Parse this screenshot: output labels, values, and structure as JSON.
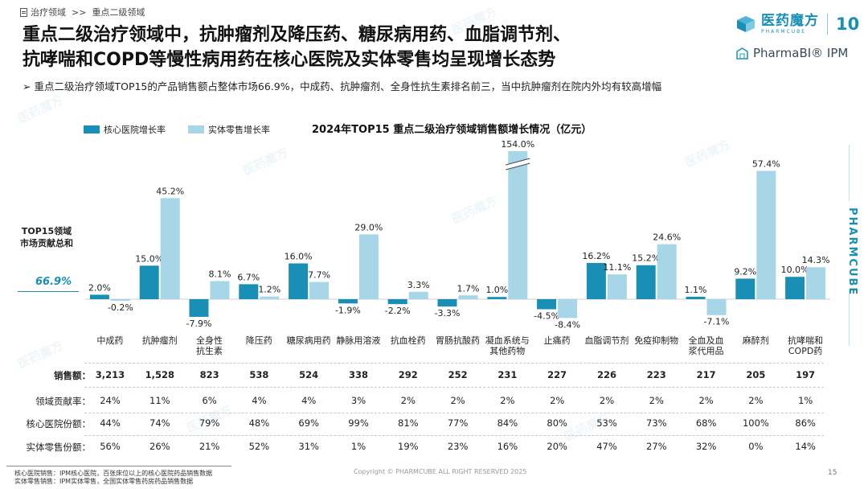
{
  "breadcrumb": {
    "section": "治疗领域",
    "separator": ">>",
    "current": "重点二级领域"
  },
  "title_lines": [
    "重点二级治疗领域中，抗肿瘤剂及降压药、糖尿病用药、血脂调节剂、",
    "抗哮喘和COPD等慢性病用药在核心医院及实体零售均呈现增长态势"
  ],
  "subtitle": "重点二级治疗领域TOP15的产品销售额占整体市场66.9%，中成药、抗肿瘤剂、全身性抗生素排名前三，当中抗肿瘤剂在院内外均有较高增幅",
  "logo": {
    "brand_cn": "医药魔方",
    "brand_en": "PHARMCUBE",
    "anniversary": "10",
    "product": "PharmaBI® IPM",
    "side": "PHARMCUBE",
    "watermark": "医药魔方"
  },
  "legend": {
    "hospital": "核心医院增长率",
    "retail": "实体零售增长率"
  },
  "chart_title": "2024年TOP15 重点二级治疗领域销售额增长情况（亿元）",
  "contribution": {
    "label_line1": "TOP15领域",
    "label_line2": "市场贡献总和",
    "value": "66.9%"
  },
  "colors": {
    "hospital": "#1a8fb5",
    "retail": "#a6d6e8",
    "accent": "#1a8fb5"
  },
  "chart_data": {
    "type": "bar",
    "title": "2024年TOP15 重点二级治疗领域销售额增长情况（亿元）",
    "categories": [
      "中成药",
      "抗肿瘤剂",
      "全身性\n抗生素",
      "降压药",
      "糖尿病用药",
      "静脉用溶液",
      "抗血栓药",
      "胃肠抗酸药",
      "凝血系统与\n其他药物",
      "止痛药",
      "血脂调节剂",
      "免疫抑制物",
      "全血及血\n浆代用品",
      "麻醉剂",
      "抗哮喘和\nCOPD药"
    ],
    "series": [
      {
        "name": "核心医院增长率",
        "values": [
          2.0,
          15.0,
          -7.9,
          6.7,
          16.0,
          -1.9,
          -2.2,
          -3.3,
          1.0,
          -4.5,
          16.2,
          15.2,
          1.1,
          9.2,
          10.0
        ],
        "labels": [
          "2.0%",
          "15.0%",
          "-7.9%",
          "6.7%",
          "16.0%",
          "-1.9%",
          "-2.2%",
          "-3.3%",
          "1.0%",
          "-4.5%",
          "16.2%",
          "15.2%",
          "1.1%",
          "9.2%",
          "10.0%"
        ]
      },
      {
        "name": "实体零售增长率",
        "values": [
          -0.2,
          45.2,
          8.1,
          1.2,
          7.7,
          29.0,
          3.3,
          1.7,
          154.0,
          -8.4,
          11.1,
          24.6,
          -7.1,
          57.4,
          14.3
        ],
        "labels": [
          "-0.2%",
          "45.2%",
          "8.1%",
          "1.2%",
          "7.7%",
          "29.0%",
          "3.3%",
          "1.7%",
          "154.0%",
          "-8.4%",
          "11.1%",
          "24.6%",
          "-7.1%",
          "57.4%",
          "14.3%"
        ]
      }
    ],
    "axis_break": {
      "category": "凝血系统与\n其他药物",
      "series": "实体零售增长率"
    },
    "unit": "%"
  },
  "table": {
    "rows": [
      {
        "label": "销售额：",
        "bold": true,
        "values": [
          "3,213",
          "1,528",
          "823",
          "538",
          "524",
          "338",
          "292",
          "252",
          "231",
          "227",
          "226",
          "223",
          "217",
          "205",
          "197"
        ]
      },
      {
        "label": "领域贡献率：",
        "bold": false,
        "values": [
          "24%",
          "11%",
          "6%",
          "4%",
          "4%",
          "3%",
          "2%",
          "2%",
          "2%",
          "2%",
          "2%",
          "2%",
          "2%",
          "2%",
          "1%"
        ]
      },
      {
        "label": "核心医院份额：",
        "bold": false,
        "values": [
          "44%",
          "74%",
          "79%",
          "48%",
          "69%",
          "99%",
          "81%",
          "77%",
          "84%",
          "80%",
          "53%",
          "73%",
          "68%",
          "100%",
          "86%"
        ]
      },
      {
        "label": "实体零售份额：",
        "bold": false,
        "values": [
          "56%",
          "26%",
          "21%",
          "52%",
          "31%",
          "1%",
          "19%",
          "23%",
          "16%",
          "20%",
          "47%",
          "27%",
          "32%",
          "0%",
          "14%"
        ]
      }
    ]
  },
  "footnote": {
    "line1": "核心医院销售：IPM核心医院，百张床位以上的核心医院药品销售数据",
    "line2": "实体零售销售：IPM实体零售，全国实体零售药房药品销售数据"
  },
  "copyright": "Copyright © PHARMCUBE ALL RIGHT RESERVED 2025",
  "page_number": "15"
}
